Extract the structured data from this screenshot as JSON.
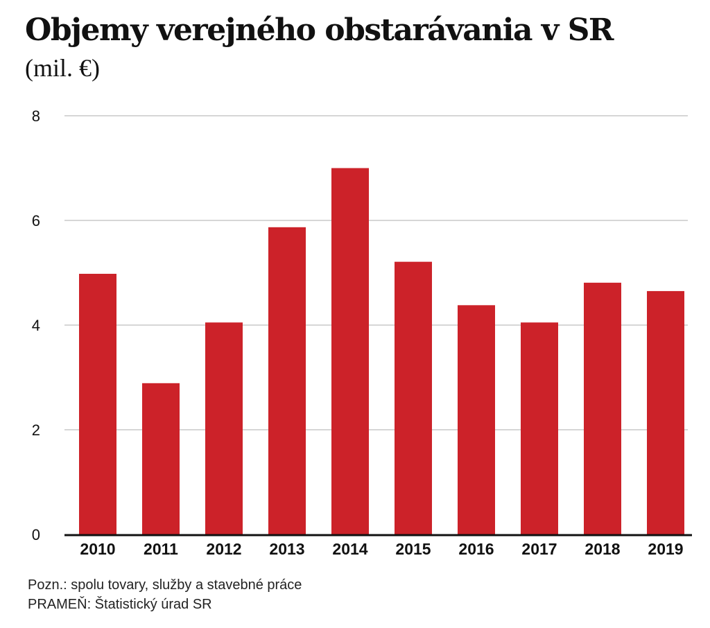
{
  "chart_data": {
    "type": "bar",
    "title": "Objemy verejného obstarávania v SR",
    "subtitle": "(mil. €)",
    "categories": [
      "2010",
      "2011",
      "2012",
      "2013",
      "2014",
      "2015",
      "2016",
      "2017",
      "2018",
      "2019"
    ],
    "values": [
      4.98,
      2.89,
      4.05,
      5.87,
      7.0,
      5.21,
      4.38,
      4.05,
      4.81,
      4.65
    ],
    "ylim": [
      0,
      8
    ],
    "yticks": [
      "0",
      "2",
      "4",
      "6",
      "8"
    ],
    "xlabel": "",
    "ylabel": "",
    "grid": true,
    "legend": "none",
    "bar_color": "#cc2229",
    "grid_color": "#c8c8c8",
    "axis_color": "#111111"
  },
  "notes": {
    "note": "Pozn.: spolu tovary, služby a stavebné práce",
    "source": "PRAMEŇ: Štatistický úrad SR"
  }
}
